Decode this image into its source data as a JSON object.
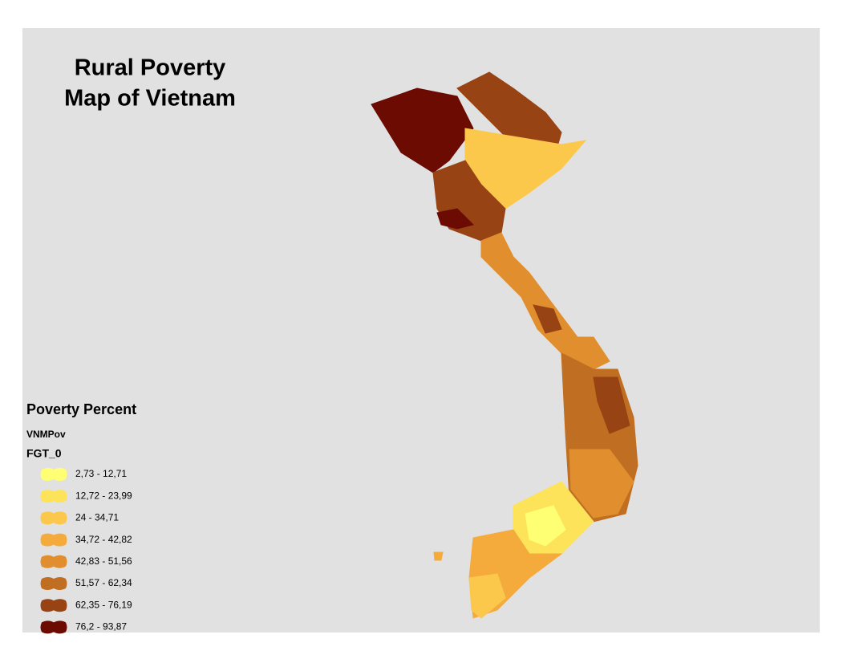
{
  "title": [
    "Rural Poverty",
    "Map of Vietnam"
  ],
  "legend": {
    "title": "Poverty Percent",
    "layer": "VNMPov",
    "field": "FGT_0",
    "classes": [
      {
        "label": "2,73 - 12,71",
        "color": "#ffff73"
      },
      {
        "label": "12,72 - 23,99",
        "color": "#fde35a"
      },
      {
        "label": "24 - 34,71",
        "color": "#fcc84c"
      },
      {
        "label": "34,72 - 42,82",
        "color": "#f5ab3c"
      },
      {
        "label": "42,83 - 51,56",
        "color": "#e08e2e"
      },
      {
        "label": "51,57 - 62,34",
        "color": "#c06e22"
      },
      {
        "label": "62,35 - 76,19",
        "color": "#984314"
      },
      {
        "label": "76,2 - 93,87",
        "color": "#6b0b02"
      }
    ]
  }
}
